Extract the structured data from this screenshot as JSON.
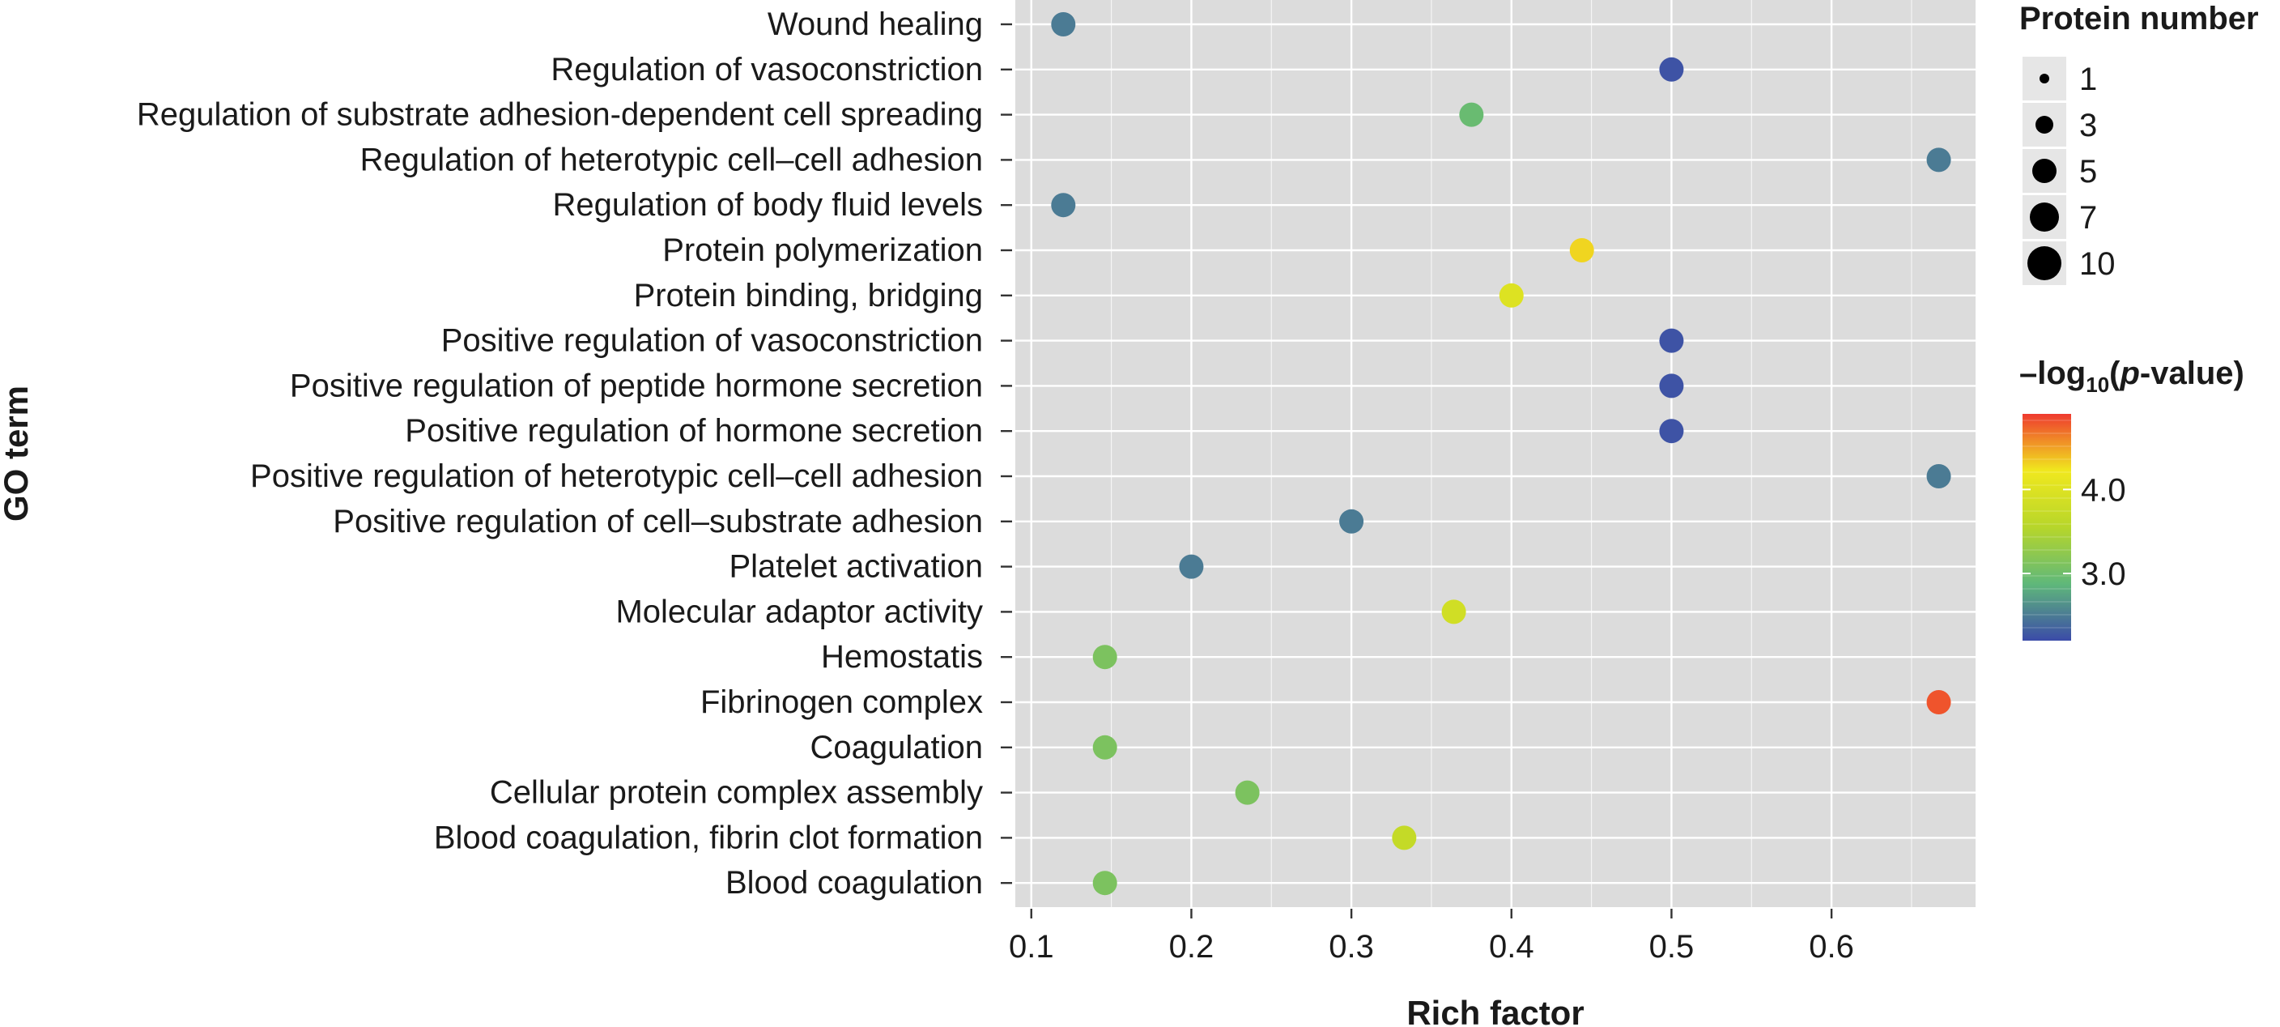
{
  "chart_data": {
    "type": "scatter",
    "xlabel": "Rich factor",
    "ylabel": "GO term",
    "xlim": [
      0.09,
      0.69
    ],
    "x_ticks": [
      "0.1",
      "0.2",
      "0.3",
      "0.4",
      "0.5",
      "0.6"
    ],
    "grid": true,
    "categories": [
      "Wound healing",
      "Regulation of vasoconstriction",
      "Regulation of substrate adhesion-dependent cell spreading",
      "Regulation of heterotypic cell–cell adhesion",
      "Regulation of body fluid levels",
      "Protein polymerization",
      "Protein binding, bridging",
      "Positive regulation of vasoconstriction",
      "Positive regulation of peptide hormone secretion",
      "Positive regulation of hormone secretion",
      "Positive regulation of heterotypic cell–cell adhesion",
      "Positive regulation of cell–substrate adhesion",
      "Platelet activation",
      "Molecular adaptor activity",
      "Hemostatis",
      "Fibrinogen complex",
      "Coagulation",
      "Cellular protein complex assembly",
      "Blood coagulation, fibrin clot formation",
      "Blood coagulation"
    ],
    "points": [
      {
        "term": "Wound healing",
        "x": 0.12,
        "neglog10p": 2.5
      },
      {
        "term": "Regulation of vasoconstriction",
        "x": 0.5,
        "neglog10p": 2.25
      },
      {
        "term": "Regulation of substrate adhesion-dependent cell spreading",
        "x": 0.375,
        "neglog10p": 2.95
      },
      {
        "term": "Regulation of heterotypic cell–cell adhesion",
        "x": 0.667,
        "neglog10p": 2.5
      },
      {
        "term": "Regulation of body fluid levels",
        "x": 0.12,
        "neglog10p": 2.5
      },
      {
        "term": "Protein polymerization",
        "x": 0.444,
        "neglog10p": 4.3
      },
      {
        "term": "Protein binding, bridging",
        "x": 0.4,
        "neglog10p": 4.0
      },
      {
        "term": "Positive regulation of vasoconstriction",
        "x": 0.5,
        "neglog10p": 2.25
      },
      {
        "term": "Positive regulation of peptide hormone secretion",
        "x": 0.5,
        "neglog10p": 2.25
      },
      {
        "term": "Positive regulation of hormone secretion",
        "x": 0.5,
        "neglog10p": 2.25
      },
      {
        "term": "Positive regulation of heterotypic cell–cell adhesion",
        "x": 0.667,
        "neglog10p": 2.5
      },
      {
        "term": "Positive regulation of cell–substrate adhesion",
        "x": 0.3,
        "neglog10p": 2.5
      },
      {
        "term": "Platelet activation",
        "x": 0.2,
        "neglog10p": 2.5
      },
      {
        "term": "Molecular adaptor activity",
        "x": 0.364,
        "neglog10p": 3.85
      },
      {
        "term": "Hemostatis",
        "x": 0.146,
        "neglog10p": 3.1
      },
      {
        "term": "Fibrinogen complex",
        "x": 0.667,
        "neglog10p": 4.8
      },
      {
        "term": "Coagulation",
        "x": 0.146,
        "neglog10p": 3.1
      },
      {
        "term": "Cellular protein complex assembly",
        "x": 0.235,
        "neglog10p": 3.1
      },
      {
        "term": "Blood coagulation, fibrin clot formation",
        "x": 0.333,
        "neglog10p": 3.7
      },
      {
        "term": "Blood coagulation",
        "x": 0.146,
        "neglog10p": 3.1
      }
    ],
    "size_legend": {
      "title": "Protein number",
      "entries": [
        "1",
        "3",
        "5",
        "7",
        "10"
      ]
    },
    "color_legend": {
      "title_parts": [
        "–log",
        "10",
        "(",
        "p",
        "-value)"
      ],
      "range": [
        2.2,
        4.9
      ],
      "ticks": [
        {
          "label": "3.0",
          "value": 3.0
        },
        {
          "label": "4.0",
          "value": 4.0
        }
      ],
      "colors": [
        "#3b4ba8",
        "#5fb87a",
        "#b7d62a",
        "#f0e81e",
        "#ef3a2f"
      ]
    },
    "style": {
      "panel_bg": "#dcdcdc",
      "grid_color": "#ffffff",
      "tick_color": "#333333",
      "point_outline": "none"
    }
  }
}
